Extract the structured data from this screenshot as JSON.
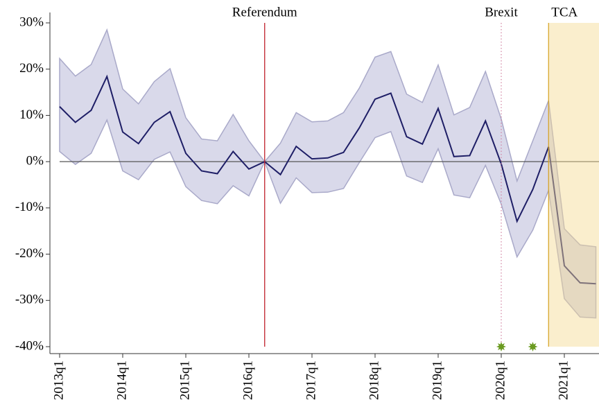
{
  "chart_data": {
    "type": "line",
    "categories": [
      "2013q1",
      null,
      null,
      null,
      "2014q1",
      null,
      null,
      null,
      "2015q1",
      null,
      null,
      null,
      "2016q1",
      null,
      null,
      null,
      "2017q1",
      null,
      null,
      null,
      "2018q1",
      null,
      null,
      null,
      "2019q1",
      null,
      null,
      null,
      "2020q1",
      null,
      null,
      null,
      "2021q1",
      null,
      null
    ],
    "series": [
      {
        "color": "#1e1e66",
        "band_color": "#d9d9ea",
        "band_edge": "#a9a9c9",
        "values": [
          11.9,
          8.5,
          11.1,
          18.4,
          6.4,
          3.9,
          8.5,
          10.8,
          1.8,
          -2.0,
          -2.6,
          2.2,
          -1.6,
          0,
          -2.8,
          3.3,
          0.6,
          0.8,
          2.0,
          7.3,
          13.5,
          14.8,
          5.4,
          3.8,
          11.5,
          1.1,
          1.3,
          8.8,
          -0.5,
          -12.9,
          -6.0,
          3.2,
          -22.5,
          -26.2,
          -26.4
        ],
        "upper": [
          22.3,
          18.5,
          21.0,
          28.5,
          15.7,
          12.5,
          17.3,
          20.1,
          9.5,
          4.9,
          4.5,
          10.2,
          4.5,
          0,
          4.0,
          10.6,
          8.6,
          8.8,
          10.6,
          15.9,
          22.6,
          23.8,
          14.6,
          12.8,
          20.9,
          10.1,
          11.7,
          19.5,
          9.2,
          -4.2,
          4.5,
          13.2,
          -14.5,
          -18.0,
          -18.4
        ],
        "lower": [
          2.2,
          -0.6,
          1.8,
          9.0,
          -2.0,
          -3.9,
          0.5,
          2.1,
          -5.4,
          -8.4,
          -9.1,
          -5.2,
          -7.4,
          0,
          -9.0,
          -3.5,
          -6.7,
          -6.6,
          -5.8,
          -0.2,
          5.2,
          6.5,
          -3.1,
          -4.5,
          2.8,
          -7.2,
          -7.8,
          -0.8,
          -9.2,
          -20.6,
          -14.8,
          -6.2,
          -29.6,
          -33.6,
          -33.8
        ]
      }
    ],
    "ylim": [
      -40,
      30
    ],
    "yticks": [
      {
        "value": -40,
        "label": "-40%"
      },
      {
        "value": -30,
        "label": "-30%"
      },
      {
        "value": -20,
        "label": "-20%"
      },
      {
        "value": -10,
        "label": "-10%"
      },
      {
        "value": 0,
        "label": "0%"
      },
      {
        "value": 10,
        "label": "10%"
      },
      {
        "value": 20,
        "label": "20%"
      },
      {
        "value": 30,
        "label": "30%"
      }
    ],
    "annotations": [
      {
        "label": "Referendum",
        "x": 13,
        "color": "#c0202a",
        "style": "solid"
      },
      {
        "label": "Brexit",
        "x": 28,
        "color": "#d080a0",
        "style": "dotted"
      }
    ],
    "shaded": {
      "label": "TCA",
      "x_start": 31,
      "color": "#f3d990",
      "edge": "#d4a020"
    },
    "markers": {
      "x": [
        28,
        30
      ],
      "y": [
        -40,
        -40
      ],
      "color": "#6a9a20"
    }
  }
}
